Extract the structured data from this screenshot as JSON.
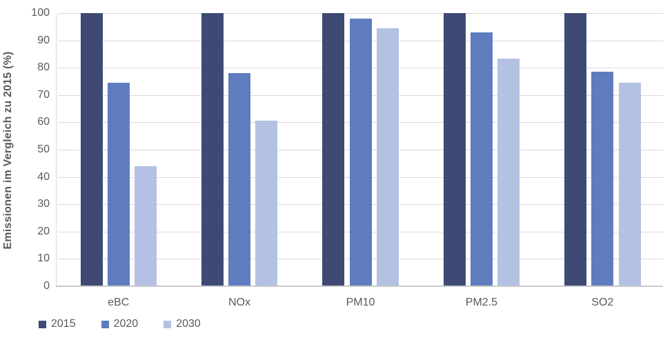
{
  "chart_data": {
    "type": "bar",
    "title": "",
    "categories": [
      "eBC",
      "NOx",
      "PM10",
      "PM2.5",
      "SO2"
    ],
    "series": [
      {
        "name": "2015",
        "color": "#3e4a74",
        "values": [
          100,
          100,
          100,
          100,
          100
        ]
      },
      {
        "name": "2020",
        "color": "#5f7cbe",
        "values": [
          74.5,
          78,
          98,
          93,
          78.5
        ]
      },
      {
        "name": "2030",
        "color": "#b3c1e3",
        "values": [
          44,
          60.5,
          94.5,
          83.3,
          74.5
        ]
      }
    ],
    "xlabel": "",
    "ylabel": "Emissionen im Vergleich zu 2015 (%)",
    "ylim": [
      0,
      100
    ],
    "yticks": [
      0,
      10,
      20,
      30,
      40,
      50,
      60,
      70,
      80,
      90,
      100
    ],
    "grid": true,
    "legend_position": "bottom-left"
  },
  "colors": {
    "gridline": "#d9d9d9",
    "axis_line": "#c9c9c9",
    "tick_text": "#595959",
    "axis_title_text": "#595959",
    "background": "#ffffff"
  }
}
